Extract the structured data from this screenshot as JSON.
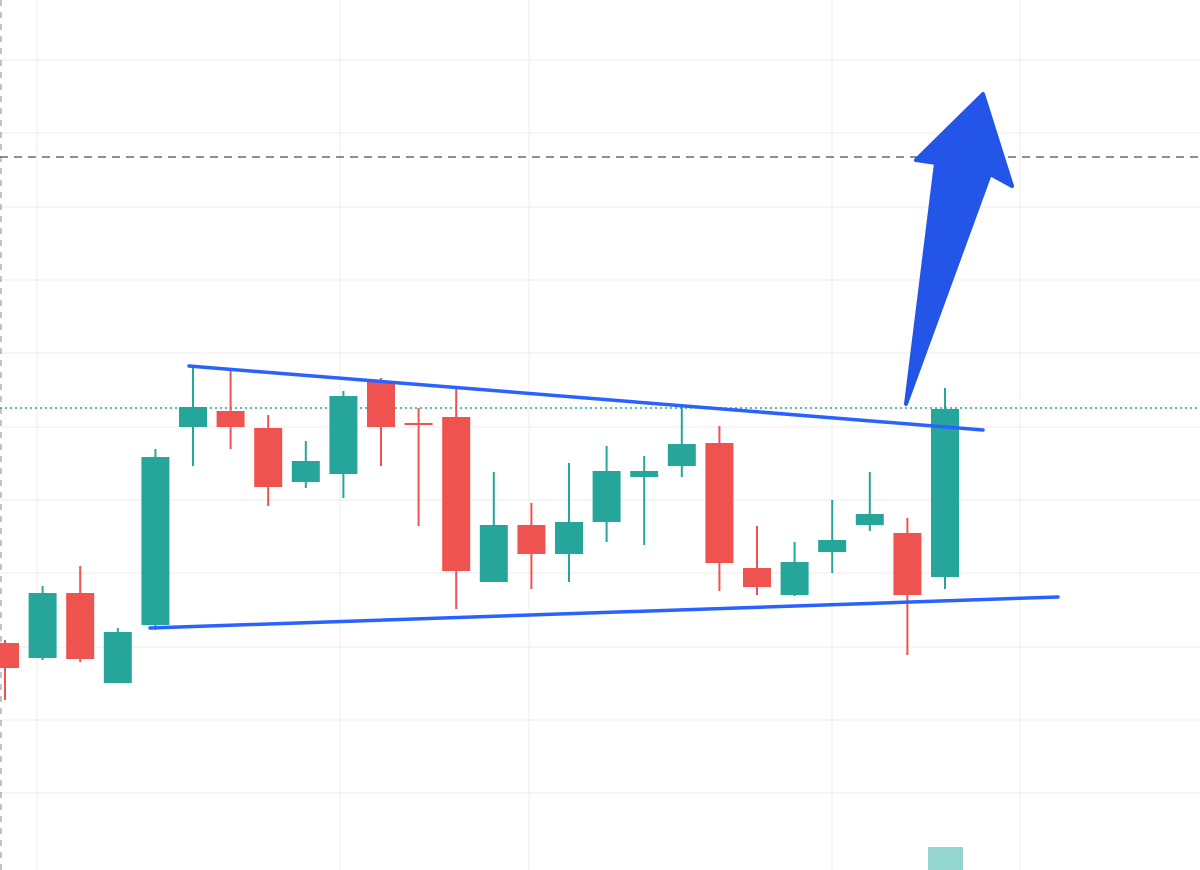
{
  "chart_data": {
    "type": "candlestick",
    "up_color": "#26a69a",
    "down_color": "#ef5350",
    "ylim": [
      0,
      870
    ],
    "yticks": [
      77,
      150,
      223,
      297,
      370,
      443,
      517,
      590,
      663,
      737,
      810
    ],
    "grid": true,
    "candles": [
      {
        "open": 227,
        "high": 230,
        "low": 170,
        "close": 202
      },
      {
        "open": 212,
        "high": 284,
        "low": 210,
        "close": 277
      },
      {
        "open": 277,
        "high": 304,
        "low": 208,
        "close": 211
      },
      {
        "open": 187,
        "high": 242,
        "low": 187,
        "close": 238
      },
      {
        "open": 245,
        "high": 421,
        "low": 240,
        "close": 413
      },
      {
        "open": 443,
        "high": 503,
        "low": 404,
        "close": 463
      },
      {
        "open": 459,
        "high": 499,
        "low": 421,
        "close": 443
      },
      {
        "open": 442,
        "high": 455,
        "low": 364,
        "close": 383
      },
      {
        "open": 388,
        "high": 429,
        "low": 382,
        "close": 409
      },
      {
        "open": 396,
        "high": 479,
        "low": 372,
        "close": 474
      },
      {
        "open": 489,
        "high": 492,
        "low": 404,
        "close": 443
      },
      {
        "open": 447,
        "high": 462,
        "low": 344,
        "close": 445
      },
      {
        "open": 453,
        "high": 482,
        "low": 261,
        "close": 299
      },
      {
        "open": 288,
        "high": 398,
        "low": 288,
        "close": 345
      },
      {
        "open": 345,
        "high": 367,
        "low": 281,
        "close": 316
      },
      {
        "open": 316,
        "high": 407,
        "low": 288,
        "close": 348
      },
      {
        "open": 348,
        "high": 424,
        "low": 328,
        "close": 399
      },
      {
        "open": 393,
        "high": 414,
        "low": 325,
        "close": 399
      },
      {
        "open": 404,
        "high": 465,
        "low": 393,
        "close": 426
      },
      {
        "open": 427,
        "high": 444,
        "low": 279,
        "close": 307
      },
      {
        "open": 302,
        "high": 344,
        "low": 275,
        "close": 283
      },
      {
        "open": 275,
        "high": 328,
        "low": 274,
        "close": 308
      },
      {
        "open": 318,
        "high": 370,
        "low": 297,
        "close": 330
      },
      {
        "open": 345,
        "high": 398,
        "low": 339,
        "close": 356
      },
      {
        "open": 337,
        "high": 352,
        "low": 215,
        "close": 275
      },
      {
        "open": 293,
        "high": 482,
        "low": 281,
        "close": 461
      }
    ]
  }
}
